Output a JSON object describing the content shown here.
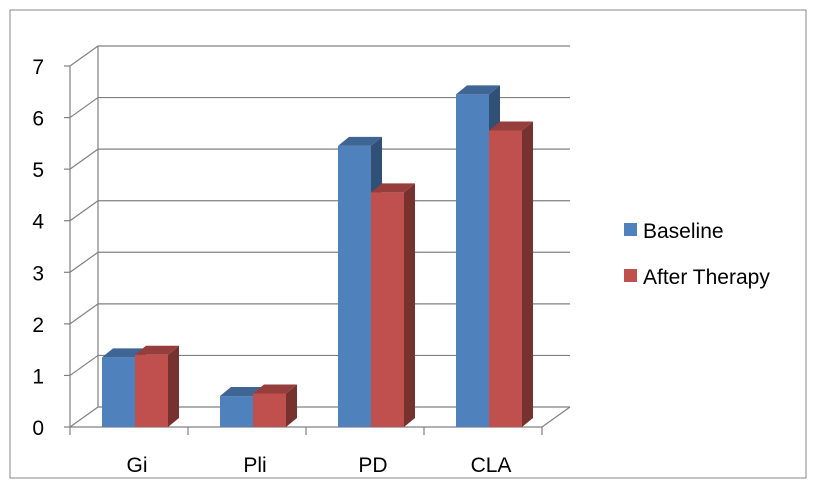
{
  "chart_data": {
    "type": "bar",
    "title": "",
    "xlabel": "",
    "ylabel": "",
    "categories": [
      "Gi",
      "Pli",
      "PD",
      "CLA"
    ],
    "series": [
      {
        "name": "Baseline",
        "values": [
          1.35,
          0.6,
          5.45,
          6.45
        ],
        "color": "#4F81BD"
      },
      {
        "name": "After Therapy",
        "values": [
          1.4,
          0.65,
          4.55,
          5.75
        ],
        "color": "#C0504D"
      }
    ],
    "ylim": [
      0,
      7
    ],
    "yticks": [
      "0",
      "1",
      "2",
      "3",
      "4",
      "5",
      "6",
      "7"
    ],
    "grid": true,
    "legend_position": "right",
    "style": "3d-clustered-column"
  }
}
